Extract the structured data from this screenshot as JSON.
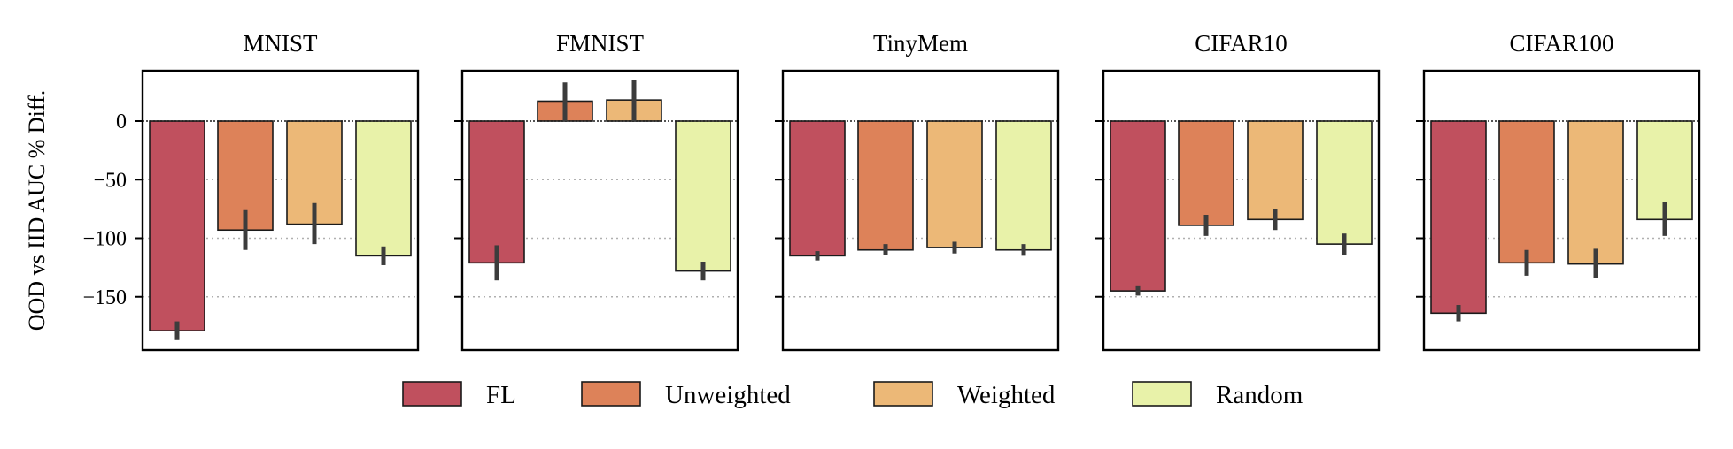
{
  "chart_data": {
    "type": "bar",
    "ylabel": "OOD vs IID AUC % Diff.",
    "yticks": [
      0,
      -50,
      -100,
      -150
    ],
    "ylim": [
      -195,
      44
    ],
    "grid": "horizontal dotted",
    "legend": "bottom-center",
    "series": [
      {
        "name": "FL",
        "color": "#c0505e"
      },
      {
        "name": "Unweighted",
        "color": "#dd8259"
      },
      {
        "name": "Weighted",
        "color": "#ecb877"
      },
      {
        "name": "Random",
        "color": "#e8f2a9"
      }
    ],
    "panels": [
      {
        "title": "MNIST",
        "values": [
          -179,
          -93,
          -88,
          -115
        ],
        "errors": [
          [
            -187,
            -171
          ],
          [
            -110,
            -76
          ],
          [
            -105,
            -70
          ],
          [
            -123,
            -107
          ]
        ]
      },
      {
        "title": "FMNIST",
        "values": [
          -121,
          17,
          18,
          -128
        ],
        "errors": [
          [
            -136,
            -106
          ],
          [
            0,
            33
          ],
          [
            0,
            35
          ],
          [
            -136,
            -120
          ]
        ]
      },
      {
        "title": "TinyMem",
        "values": [
          -115,
          -110,
          -108,
          -110
        ],
        "errors": [
          [
            -119,
            -111
          ],
          [
            -114,
            -105
          ],
          [
            -113,
            -103
          ],
          [
            -115,
            -105
          ]
        ]
      },
      {
        "title": "CIFAR10",
        "values": [
          -145,
          -89,
          -84,
          -105
        ],
        "errors": [
          [
            -149,
            -141
          ],
          [
            -98,
            -80
          ],
          [
            -93,
            -75
          ],
          [
            -114,
            -96
          ]
        ]
      },
      {
        "title": "CIFAR100",
        "values": [
          -164,
          -121,
          -122,
          -84
        ],
        "errors": [
          [
            -171,
            -157
          ],
          [
            -132,
            -110
          ],
          [
            -134,
            -109
          ],
          [
            -98,
            -69
          ]
        ]
      }
    ]
  }
}
